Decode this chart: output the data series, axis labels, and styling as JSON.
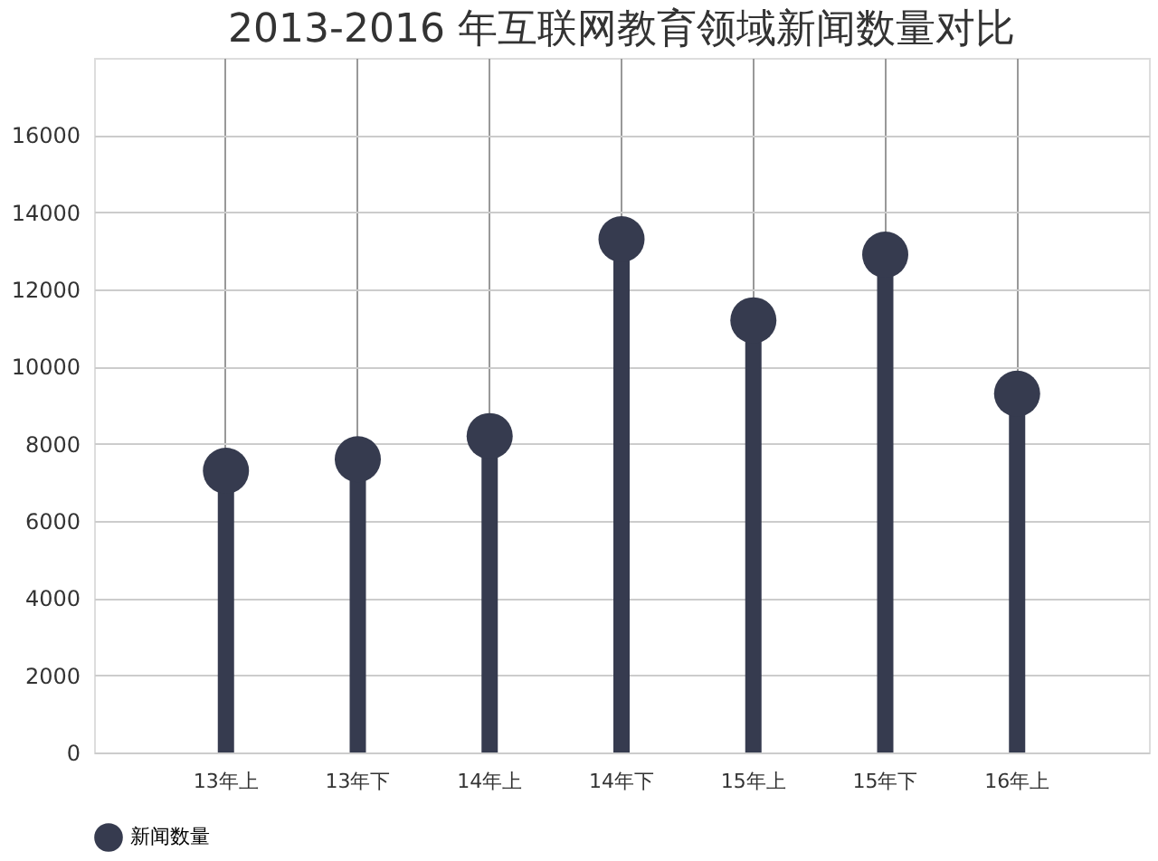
{
  "chart_data": {
    "type": "lollipop",
    "title": "2013-2016 年互联网教育领域新闻数量对比",
    "categories": [
      "13年上",
      "13年下",
      "14年上",
      "14年下",
      "15年上",
      "15年下",
      "16年上"
    ],
    "series": [
      {
        "name": "新闻数量",
        "color": "#363b4f",
        "values": [
          7300,
          7600,
          8200,
          13300,
          11200,
          12900,
          9300
        ]
      }
    ],
    "ylim": [
      0,
      18000
    ],
    "yticks": [
      0,
      2000,
      4000,
      6000,
      8000,
      10000,
      12000,
      14000,
      16000
    ],
    "grid": true,
    "legend": "bottom",
    "marker": "circle"
  }
}
